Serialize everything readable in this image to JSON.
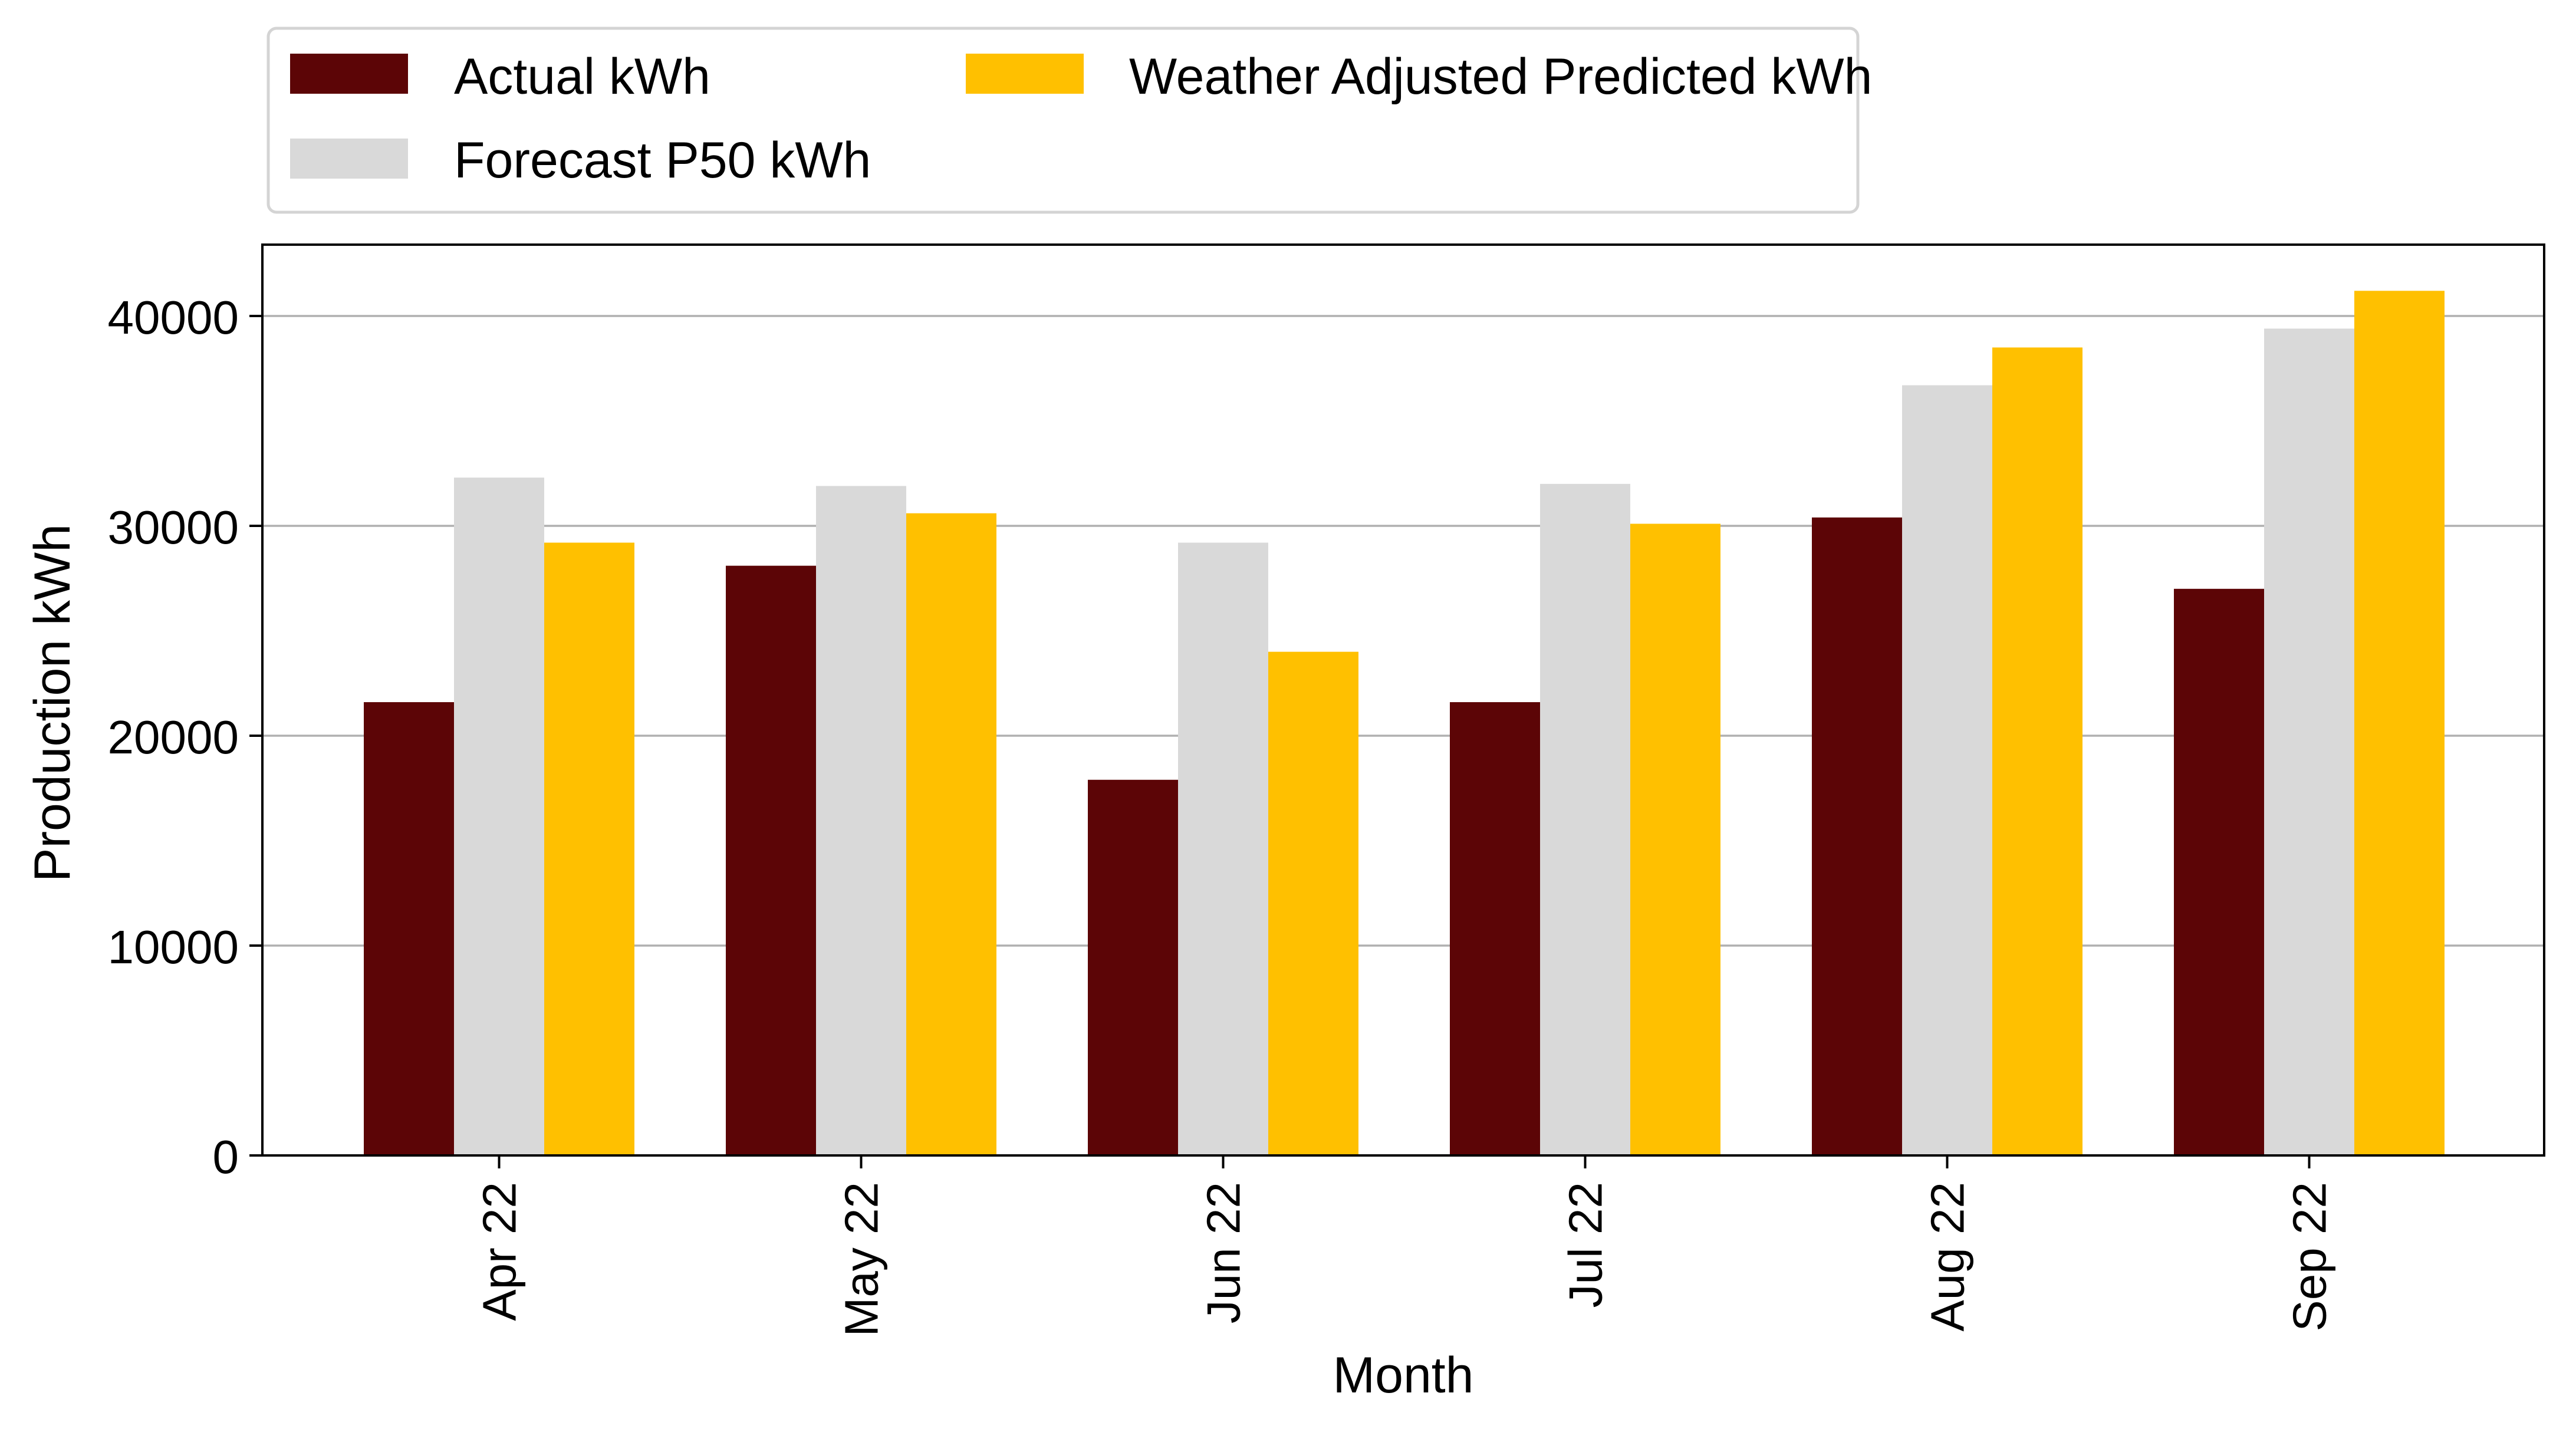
{
  "chart_data": {
    "type": "bar",
    "categories": [
      "Apr 22",
      "May 22",
      "Jun 22",
      "Jul 22",
      "Aug 22",
      "Sep 22"
    ],
    "series": [
      {
        "name": "Actual kWh",
        "color": "#5c0506",
        "values": [
          21600,
          28100,
          17900,
          21600,
          30400,
          27000
        ]
      },
      {
        "name": "Forecast P50 kWh",
        "color": "#d9d9d9",
        "values": [
          32300,
          31900,
          29200,
          32000,
          36700,
          39400
        ]
      },
      {
        "name": "Weather Adjusted Predicted kWh",
        "color": "#ffc000",
        "values": [
          29200,
          30600,
          24000,
          30100,
          38500,
          41200
        ]
      }
    ],
    "xlabel": "Month",
    "ylabel": "Production kWh",
    "ylim": [
      0,
      43400
    ],
    "yticks": [
      0,
      10000,
      20000,
      30000,
      40000
    ],
    "ytick_labels": [
      "0",
      "10000",
      "20000",
      "30000",
      "40000"
    ],
    "grid": "y-axis horizontal lines",
    "legend_position": "top, above plot",
    "x_tick_rotation": "vertical"
  }
}
